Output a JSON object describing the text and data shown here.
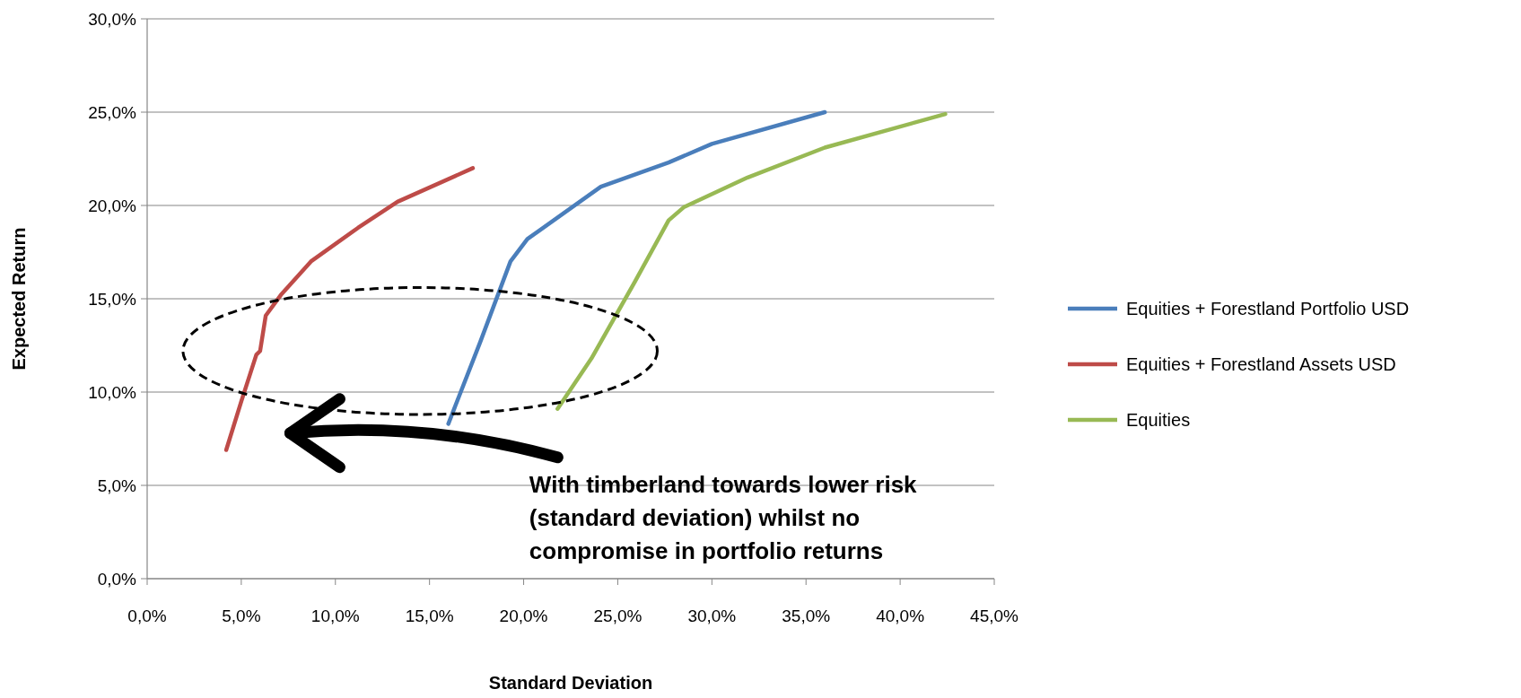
{
  "chart_data": {
    "type": "line",
    "xlabel": "Standard Deviation",
    "ylabel": "Expected Return",
    "xlim": [
      0,
      45
    ],
    "ylim": [
      0,
      30
    ],
    "xticks": [
      {
        "value": 0,
        "label": "0,0%"
      },
      {
        "value": 5,
        "label": "5,0%"
      },
      {
        "value": 10,
        "label": "10,0%"
      },
      {
        "value": 15,
        "label": "15,0%"
      },
      {
        "value": 20,
        "label": "20,0%"
      },
      {
        "value": 25,
        "label": "25,0%"
      },
      {
        "value": 30,
        "label": "30,0%"
      },
      {
        "value": 35,
        "label": "35,0%"
      },
      {
        "value": 40,
        "label": "40,0%"
      },
      {
        "value": 45,
        "label": "45,0%"
      }
    ],
    "yticks": [
      {
        "value": 0,
        "label": "0,0%"
      },
      {
        "value": 5,
        "label": "5,0%"
      },
      {
        "value": 10,
        "label": "10,0%"
      },
      {
        "value": 15,
        "label": "15,0%"
      },
      {
        "value": 20,
        "label": "20,0%"
      },
      {
        "value": 25,
        "label": "25,0%"
      },
      {
        "value": 30,
        "label": "30,0%"
      }
    ],
    "grid": "y",
    "legend": "right",
    "marker": "none",
    "line_style": "solid",
    "series": [
      {
        "name": "Equities + Forestland Portfolio USD",
        "color": "#4a7ebb",
        "x": [
          16.0,
          17.7,
          19.3,
          20.2,
          24.1,
          27.7,
          30.0,
          36.0
        ],
        "values": [
          8.3,
          12.7,
          17.0,
          18.2,
          21.0,
          22.3,
          23.3,
          25.0
        ]
      },
      {
        "name": "Equities + Forestland Assets USD",
        "color": "#be4b48",
        "x": [
          4.2,
          5.0,
          5.8,
          6.0,
          6.3,
          7.1,
          8.7,
          11.2,
          13.3,
          17.3
        ],
        "values": [
          6.9,
          9.5,
          12.0,
          12.2,
          14.1,
          15.2,
          17.0,
          18.8,
          20.2,
          22.0
        ]
      },
      {
        "name": "Equities",
        "color": "#98b954",
        "x": [
          21.8,
          23.6,
          25.9,
          27.7,
          28.5,
          31.9,
          36.0,
          42.4
        ],
        "values": [
          9.1,
          11.8,
          15.9,
          19.2,
          19.9,
          21.5,
          23.1,
          24.9
        ]
      }
    ],
    "annotations": [
      "With timberland towards lower risk (standard deviation) whilst no compromise in portfolio returns"
    ]
  }
}
